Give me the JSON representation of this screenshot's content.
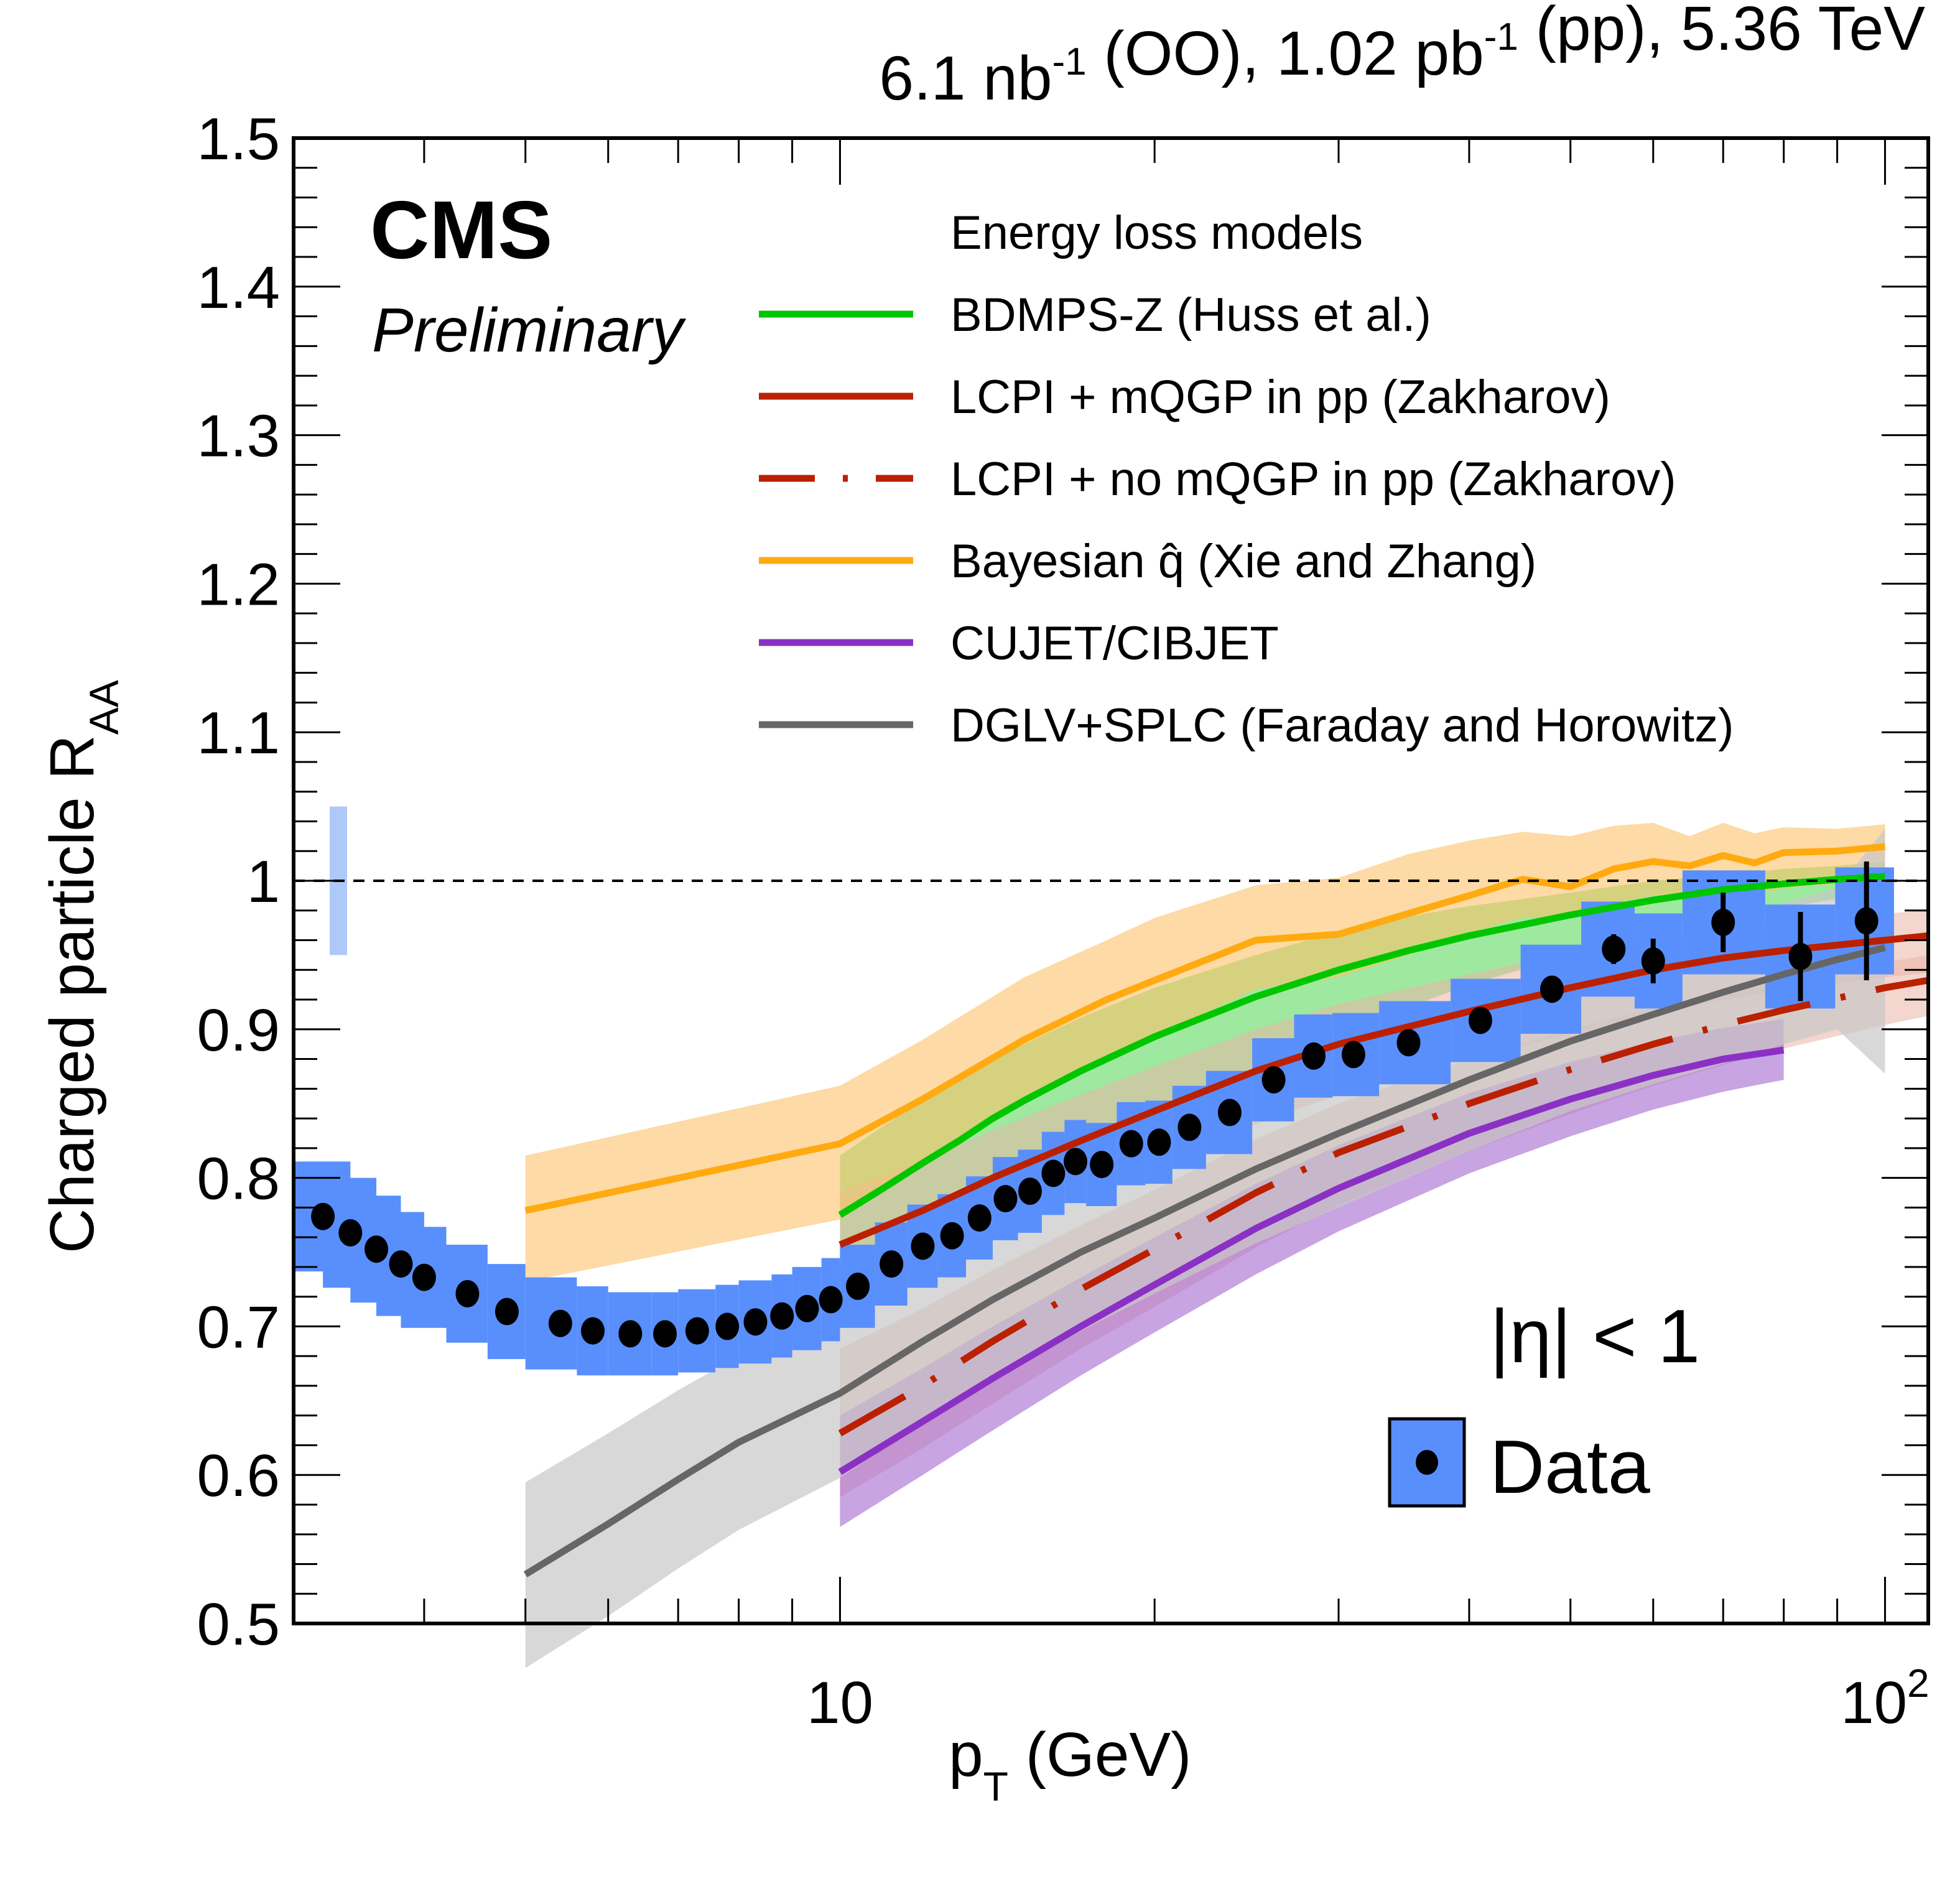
{
  "chart_data": {
    "type": "scatter",
    "title": "",
    "luminosity_label": {
      "parts": [
        {
          "text": "6.1 nb",
          "sup": "-1"
        },
        {
          "text": " (OO), 1.02 pb",
          "sup": "-1"
        },
        {
          "text": " (pp), 5.36 TeV",
          "sup": ""
        }
      ]
    },
    "experiment_label": "CMS",
    "status_label": "Preliminary",
    "xlabel": {
      "main": "p",
      "sub": "T",
      "rest": " (GeV)"
    },
    "ylabel": {
      "main": "Charged particle R",
      "sub": "AA"
    },
    "xscale": "log",
    "xlim": [
      3,
      110
    ],
    "ylim": [
      0.5,
      1.5
    ],
    "x_ticks": [
      {
        "value": 10,
        "label": "10",
        "sup": ""
      },
      {
        "value": 100,
        "label": "10",
        "sup": "2"
      }
    ],
    "y_ticks": [
      {
        "value": 0.5,
        "label": "0.5"
      },
      {
        "value": 0.6,
        "label": "0.6"
      },
      {
        "value": 0.7,
        "label": "0.7"
      },
      {
        "value": 0.8,
        "label": "0.8"
      },
      {
        "value": 0.9,
        "label": "0.9"
      },
      {
        "value": 1.0,
        "label": "1"
      },
      {
        "value": 1.1,
        "label": "1.1"
      },
      {
        "value": 1.2,
        "label": "1.2"
      },
      {
        "value": 1.3,
        "label": "1.3"
      },
      {
        "value": 1.4,
        "label": "1.4"
      },
      {
        "value": 1.5,
        "label": "1.5"
      }
    ],
    "reference_line": {
      "y": 1.0,
      "style": "dashed"
    },
    "normalization_uncertainty": {
      "x": 3.35,
      "ylow": 0.95,
      "yhigh": 1.05,
      "color": "#aec9f8"
    },
    "selection_label": "|η| < 1",
    "legend_models_header": "Energy loss models",
    "legend_data_label": "Data",
    "data": {
      "name": "Data",
      "marker_color": "#000000",
      "box_color": "#598ffc",
      "points": [
        {
          "x": 3.2,
          "xlo": 3.0,
          "xhi": 3.4,
          "y": 0.774,
          "sys": 0.037,
          "stat": 0.0
        },
        {
          "x": 3.4,
          "xlo": 3.2,
          "xhi": 3.6,
          "y": 0.763,
          "sys": 0.037,
          "stat": 0.0
        },
        {
          "x": 3.6,
          "xlo": 3.4,
          "xhi": 3.8,
          "y": 0.752,
          "sys": 0.036,
          "stat": 0.0
        },
        {
          "x": 3.8,
          "xlo": 3.6,
          "xhi": 4.0,
          "y": 0.742,
          "sys": 0.035,
          "stat": 0.0
        },
        {
          "x": 4.0,
          "xlo": 3.8,
          "xhi": 4.2,
          "y": 0.733,
          "sys": 0.034,
          "stat": 0.0
        },
        {
          "x": 4.4,
          "xlo": 4.2,
          "xhi": 4.6,
          "y": 0.722,
          "sys": 0.033,
          "stat": 0.0
        },
        {
          "x": 4.8,
          "xlo": 4.6,
          "xhi": 5.0,
          "y": 0.71,
          "sys": 0.032,
          "stat": 0.0
        },
        {
          "x": 5.4,
          "xlo": 5.0,
          "xhi": 5.6,
          "y": 0.702,
          "sys": 0.031,
          "stat": 0.0
        },
        {
          "x": 5.8,
          "xlo": 5.6,
          "xhi": 6.0,
          "y": 0.697,
          "sys": 0.03,
          "stat": 0.0
        },
        {
          "x": 6.3,
          "xlo": 6.0,
          "xhi": 6.6,
          "y": 0.695,
          "sys": 0.028,
          "stat": 0.0
        },
        {
          "x": 6.8,
          "xlo": 6.6,
          "xhi": 7.0,
          "y": 0.695,
          "sys": 0.028,
          "stat": 0.0
        },
        {
          "x": 7.3,
          "xlo": 7.0,
          "xhi": 7.6,
          "y": 0.697,
          "sys": 0.028,
          "stat": 0.0
        },
        {
          "x": 7.8,
          "xlo": 7.6,
          "xhi": 8.0,
          "y": 0.7,
          "sys": 0.028,
          "stat": 0.0
        },
        {
          "x": 8.3,
          "xlo": 8.0,
          "xhi": 8.6,
          "y": 0.703,
          "sys": 0.028,
          "stat": 0.0
        },
        {
          "x": 8.8,
          "xlo": 8.6,
          "xhi": 9.0,
          "y": 0.707,
          "sys": 0.028,
          "stat": 0.0
        },
        {
          "x": 9.3,
          "xlo": 9.0,
          "xhi": 9.6,
          "y": 0.712,
          "sys": 0.028,
          "stat": 0.0
        },
        {
          "x": 9.8,
          "xlo": 9.6,
          "xhi": 10.0,
          "y": 0.718,
          "sys": 0.028,
          "stat": 0.0
        },
        {
          "x": 10.4,
          "xlo": 10.0,
          "xhi": 10.8,
          "y": 0.727,
          "sys": 0.028,
          "stat": 0.0
        },
        {
          "x": 11.2,
          "xlo": 10.8,
          "xhi": 11.6,
          "y": 0.742,
          "sys": 0.028,
          "stat": 0.0
        },
        {
          "x": 12.0,
          "xlo": 11.6,
          "xhi": 12.4,
          "y": 0.754,
          "sys": 0.028,
          "stat": 0.0
        },
        {
          "x": 12.8,
          "xlo": 12.4,
          "xhi": 13.2,
          "y": 0.761,
          "sys": 0.028,
          "stat": 0.0
        },
        {
          "x": 13.6,
          "xlo": 13.2,
          "xhi": 14.0,
          "y": 0.773,
          "sys": 0.028,
          "stat": 0.0
        },
        {
          "x": 14.4,
          "xlo": 14.0,
          "xhi": 14.8,
          "y": 0.786,
          "sys": 0.028,
          "stat": 0.0
        },
        {
          "x": 15.2,
          "xlo": 14.8,
          "xhi": 15.6,
          "y": 0.791,
          "sys": 0.028,
          "stat": 0.0
        },
        {
          "x": 16.0,
          "xlo": 15.6,
          "xhi": 16.4,
          "y": 0.803,
          "sys": 0.028,
          "stat": 0.0
        },
        {
          "x": 16.8,
          "xlo": 16.4,
          "xhi": 17.2,
          "y": 0.811,
          "sys": 0.028,
          "stat": 0.0
        },
        {
          "x": 17.8,
          "xlo": 17.2,
          "xhi": 18.4,
          "y": 0.809,
          "sys": 0.028,
          "stat": 0.0
        },
        {
          "x": 19.0,
          "xlo": 18.4,
          "xhi": 19.6,
          "y": 0.823,
          "sys": 0.028,
          "stat": 0.0
        },
        {
          "x": 20.2,
          "xlo": 19.6,
          "xhi": 20.8,
          "y": 0.824,
          "sys": 0.028,
          "stat": 0.0
        },
        {
          "x": 21.6,
          "xlo": 20.8,
          "xhi": 22.4,
          "y": 0.834,
          "sys": 0.028,
          "stat": 0.0
        },
        {
          "x": 23.6,
          "xlo": 22.4,
          "xhi": 24.8,
          "y": 0.844,
          "sys": 0.028,
          "stat": 0.0
        },
        {
          "x": 26.0,
          "xlo": 24.8,
          "xhi": 27.2,
          "y": 0.866,
          "sys": 0.028,
          "stat": 0.0
        },
        {
          "x": 28.4,
          "xlo": 27.2,
          "xhi": 29.6,
          "y": 0.882,
          "sys": 0.028,
          "stat": 0.0
        },
        {
          "x": 31.0,
          "xlo": 29.6,
          "xhi": 32.8,
          "y": 0.883,
          "sys": 0.028,
          "stat": 0.0
        },
        {
          "x": 35.0,
          "xlo": 32.8,
          "xhi": 38.4,
          "y": 0.891,
          "sys": 0.028,
          "stat": 0.0
        },
        {
          "x": 41.0,
          "xlo": 38.4,
          "xhi": 44.8,
          "y": 0.906,
          "sys": 0.028,
          "stat": 0.0
        },
        {
          "x": 48.0,
          "xlo": 44.8,
          "xhi": 51.2,
          "y": 0.927,
          "sys": 0.03,
          "stat": 0.005
        },
        {
          "x": 55.0,
          "xlo": 51.2,
          "xhi": 57.6,
          "y": 0.954,
          "sys": 0.032,
          "stat": 0.01
        },
        {
          "x": 60.0,
          "xlo": 57.6,
          "xhi": 64.0,
          "y": 0.946,
          "sys": 0.032,
          "stat": 0.015
        },
        {
          "x": 70.0,
          "xlo": 64.0,
          "xhi": 76.8,
          "y": 0.972,
          "sys": 0.035,
          "stat": 0.02
        },
        {
          "x": 83.0,
          "xlo": 76.8,
          "xhi": 89.6,
          "y": 0.949,
          "sys": 0.035,
          "stat": 0.03
        },
        {
          "x": 96.0,
          "xlo": 89.6,
          "xhi": 102.0,
          "y": 0.973,
          "sys": 0.036,
          "stat": 0.04
        }
      ]
    },
    "series": [
      {
        "name": "BDMPS-Z (Huss et al.)",
        "color": "#00c600",
        "band_color": "#5fd95f",
        "band_opacity": 0.6,
        "dash": "solid",
        "x": [
          10,
          11,
          12,
          13,
          14,
          15,
          17,
          20,
          25,
          30,
          35,
          40,
          50,
          60,
          70,
          80,
          90,
          100
        ],
        "y": [
          0.775,
          0.793,
          0.81,
          0.825,
          0.84,
          0.852,
          0.872,
          0.895,
          0.922,
          0.94,
          0.953,
          0.963,
          0.977,
          0.987,
          0.994,
          0.998,
          1.001,
          1.003
        ],
        "ylow": [
          0.705,
          0.725,
          0.745,
          0.76,
          0.775,
          0.79,
          0.815,
          0.84,
          0.875,
          0.9,
          0.915,
          0.93,
          0.95,
          0.965,
          0.975,
          0.982,
          0.988,
          0.992
        ],
        "yhigh": [
          0.815,
          0.835,
          0.852,
          0.866,
          0.88,
          0.89,
          0.908,
          0.928,
          0.95,
          0.966,
          0.976,
          0.983,
          0.992,
          1.0,
          1.004,
          1.008,
          1.01,
          1.013
        ]
      },
      {
        "name": "LCPI + mQGP in pp (Zakharov)",
        "color": "#bb2000",
        "band_color": "#e9b5a6",
        "band_opacity": 0.55,
        "dash": "solid",
        "x": [
          10,
          12,
          14,
          17,
          20,
          25,
          30,
          40,
          50,
          60,
          70,
          80,
          100,
          110
        ],
        "y": [
          0.755,
          0.778,
          0.8,
          0.825,
          0.845,
          0.872,
          0.89,
          0.912,
          0.928,
          0.94,
          0.948,
          0.953,
          0.96,
          0.963
        ],
        "ylow": [
          0.715,
          0.74,
          0.762,
          0.787,
          0.808,
          0.836,
          0.856,
          0.88,
          0.897,
          0.91,
          0.92,
          0.926,
          0.935,
          0.938
        ],
        "yhigh": [
          0.79,
          0.812,
          0.832,
          0.856,
          0.875,
          0.9,
          0.917,
          0.937,
          0.952,
          0.962,
          0.968,
          0.972,
          0.978,
          0.98
        ]
      },
      {
        "name": "LCPI + no mQGP in pp (Zakharov)",
        "color": "#bb2000",
        "band_color": "#e9b5a6",
        "band_opacity": 0.55,
        "dash": "dashdot",
        "x": [
          10,
          12,
          14,
          17,
          20,
          25,
          30,
          40,
          50,
          60,
          70,
          80,
          100,
          110
        ],
        "y": [
          0.628,
          0.66,
          0.69,
          0.725,
          0.752,
          0.79,
          0.817,
          0.85,
          0.873,
          0.89,
          0.903,
          0.913,
          0.928,
          0.933
        ],
        "ylow": [
          0.585,
          0.618,
          0.648,
          0.685,
          0.713,
          0.753,
          0.782,
          0.818,
          0.843,
          0.862,
          0.876,
          0.887,
          0.903,
          0.909
        ],
        "yhigh": [
          0.685,
          0.712,
          0.738,
          0.768,
          0.792,
          0.826,
          0.85,
          0.88,
          0.9,
          0.914,
          0.925,
          0.933,
          0.945,
          0.95
        ]
      },
      {
        "name": "Bayesian q̂ (Xie and Zhang)",
        "color": "#ffaa11",
        "band_color": "#fcc26a",
        "band_opacity": 0.6,
        "dash": "solid",
        "x": [
          5,
          10,
          12,
          15,
          18,
          20,
          25,
          30,
          35,
          40,
          45,
          50,
          55,
          60,
          65,
          70,
          75,
          80,
          90,
          100
        ],
        "y": [
          0.778,
          0.823,
          0.853,
          0.893,
          0.92,
          0.933,
          0.96,
          0.964,
          0.978,
          0.99,
          1.001,
          0.996,
          1.008,
          1.013,
          1.01,
          1.017,
          1.012,
          1.019,
          1.02,
          1.023
        ],
        "ylow": [
          0.73,
          0.772,
          0.808,
          0.85,
          0.88,
          0.895,
          0.927,
          0.935,
          0.95,
          0.965,
          0.975,
          0.975,
          0.985,
          0.99,
          0.988,
          0.993,
          0.99,
          0.995,
          0.998,
          1.0
        ],
        "yhigh": [
          0.815,
          0.862,
          0.893,
          0.935,
          0.96,
          0.975,
          0.997,
          1.002,
          1.018,
          1.027,
          1.033,
          1.03,
          1.037,
          1.039,
          1.03,
          1.039,
          1.032,
          1.036,
          1.035,
          1.038
        ]
      },
      {
        "name": "CUJET/CIBJET",
        "color": "#8b30c4",
        "band_color": "#a468d0",
        "band_opacity": 0.6,
        "dash": "solid",
        "x": [
          10,
          12,
          14,
          17,
          20,
          25,
          30,
          40,
          50,
          60,
          70,
          80
        ],
        "y": [
          0.602,
          0.636,
          0.665,
          0.7,
          0.728,
          0.766,
          0.793,
          0.83,
          0.853,
          0.869,
          0.88,
          0.886
        ],
        "ylow": [
          0.565,
          0.6,
          0.63,
          0.667,
          0.696,
          0.735,
          0.764,
          0.803,
          0.828,
          0.846,
          0.858,
          0.866
        ],
        "yhigh": [
          0.64,
          0.672,
          0.7,
          0.733,
          0.76,
          0.796,
          0.822,
          0.857,
          0.878,
          0.892,
          0.901,
          0.907
        ]
      },
      {
        "name": "DGLV+SPLC (Faraday and Horowitz)",
        "color": "#666666",
        "band_color": "#c8c8c8",
        "band_opacity": 0.7,
        "dash": "solid",
        "x": [
          5,
          6,
          7,
          8,
          10,
          12,
          14,
          17,
          20,
          25,
          30,
          40,
          50,
          60,
          70,
          80,
          90,
          100
        ],
        "y": [
          0.533,
          0.567,
          0.597,
          0.622,
          0.655,
          0.69,
          0.718,
          0.75,
          0.773,
          0.806,
          0.83,
          0.866,
          0.892,
          0.91,
          0.925,
          0.937,
          0.947,
          0.955
        ],
        "ylow": [
          0.47,
          0.505,
          0.537,
          0.563,
          0.598,
          0.635,
          0.663,
          0.697,
          0.722,
          0.756,
          0.78,
          0.818,
          0.845,
          0.863,
          0.877,
          0.89,
          0.9,
          0.87
        ],
        "yhigh": [
          0.595,
          0.628,
          0.657,
          0.68,
          0.713,
          0.745,
          0.772,
          0.803,
          0.824,
          0.856,
          0.88,
          0.914,
          0.94,
          0.958,
          0.972,
          0.985,
          0.995,
          1.035
        ]
      }
    ]
  }
}
